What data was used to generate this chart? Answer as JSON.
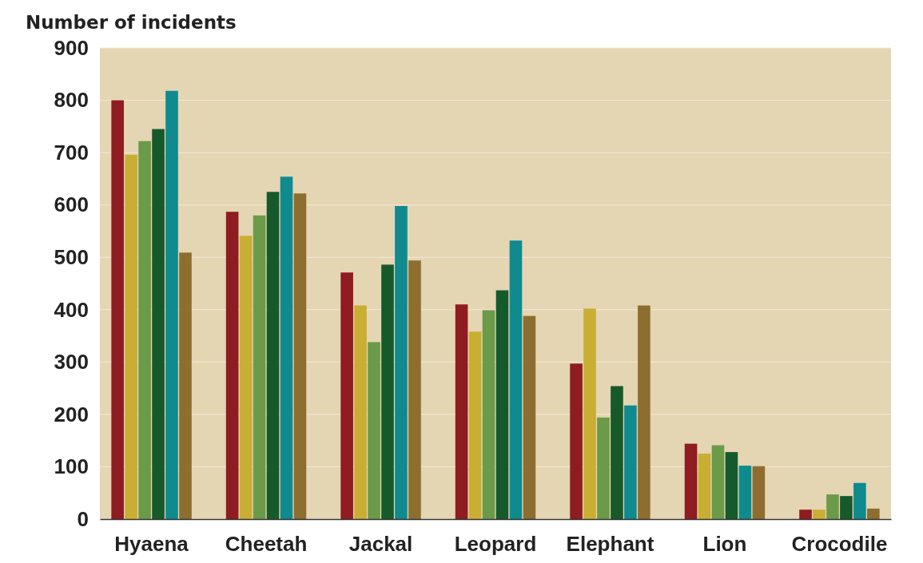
{
  "chart_data": {
    "type": "bar",
    "ylabel": "Number of incidents",
    "categories": [
      "Hyaena",
      "Cheetah",
      "Jackal",
      "Leopard",
      "Elephant",
      "Lion",
      "Crocodile"
    ],
    "series": [
      {
        "color": "#8f1c21",
        "values": [
          800,
          587,
          471,
          410,
          297,
          144,
          18
        ]
      },
      {
        "color": "#c9ae33",
        "values": [
          696,
          541,
          408,
          358,
          402,
          125,
          18
        ]
      },
      {
        "color": "#6b9a48",
        "values": [
          722,
          580,
          338,
          399,
          194,
          141,
          47
        ]
      },
      {
        "color": "#165a2c",
        "values": [
          745,
          625,
          486,
          437,
          254,
          128,
          44
        ]
      },
      {
        "color": "#0f8a8f",
        "values": [
          818,
          654,
          598,
          532,
          217,
          102,
          69
        ]
      },
      {
        "color": "#8e6e2f",
        "values": [
          509,
          622,
          494,
          388,
          408,
          101,
          20
        ]
      }
    ],
    "ylim": [
      0,
      900
    ],
    "yticks": [
      0,
      100,
      200,
      300,
      400,
      500,
      600,
      700,
      800,
      900
    ],
    "grid": "y"
  }
}
